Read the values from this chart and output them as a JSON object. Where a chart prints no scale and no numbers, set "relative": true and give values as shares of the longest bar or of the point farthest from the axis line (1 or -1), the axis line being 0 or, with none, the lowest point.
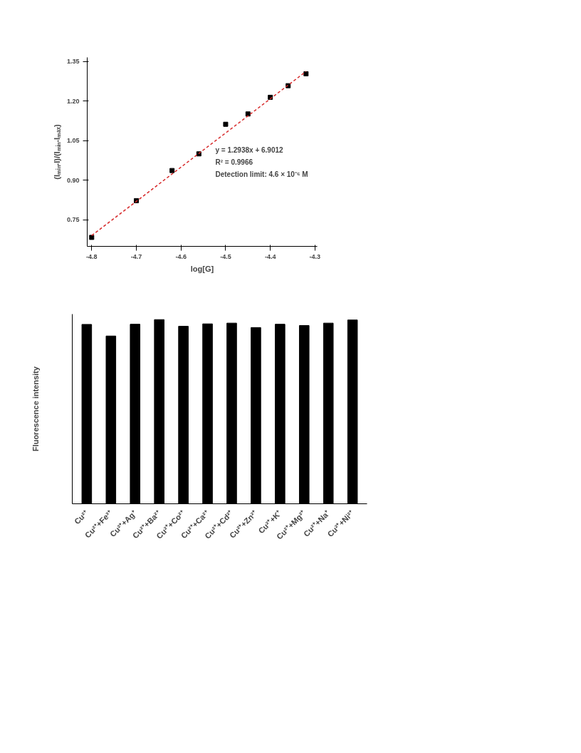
{
  "chart_data": [
    {
      "type": "scatter",
      "xlabel": "log[G]",
      "ylabel": "(Iₘᵢₙ-I)/(Iₘᵢₙ-Iₘₐₓ)",
      "xlim": [
        -4.81,
        -4.295
      ],
      "ylim": [
        0.65,
        1.365
      ],
      "xticks": [
        -4.8,
        -4.7,
        -4.6,
        -4.5,
        -4.4,
        -4.3
      ],
      "yticks": [
        0.75,
        {
          "value": 0.9,
          "label": "0.90"
        },
        1.05,
        {
          "value": 1.2,
          "label": "1.20"
        },
        1.35
      ],
      "annotations": [
        "y = 1.2938x + 6.9012",
        "R² = 0.9966",
        "Detection limit: 4.6 × 10⁻⁶ M"
      ],
      "series": [
        {
          "type": "scatter",
          "marker": "square",
          "color": "#000000",
          "x": [
            -4.8,
            -4.7,
            -4.62,
            -4.56,
            -4.5,
            -4.45,
            -4.4,
            -4.36,
            -4.32
          ],
          "values": [
            0.684,
            0.823,
            0.937,
            1.0,
            1.112,
            1.151,
            1.214,
            1.258,
            1.303
          ]
        },
        {
          "type": "line",
          "color": "#d62728",
          "line_style": "dashed",
          "x": [
            -4.8,
            -4.32
          ],
          "values": [
            0.691,
            1.312
          ]
        }
      ]
    },
    {
      "type": "bar",
      "relative": true,
      "ylabel": "Fluorescence intensity",
      "color": "#000000",
      "categories": [
        "Cu²⁺",
        "Cu²⁺+Fe³⁺",
        "Cu²⁺+Ag⁺",
        "Cu²⁺+Ba²⁺",
        "Cu²⁺+Co²⁺",
        "Cu²⁺+Ca²⁺",
        "Cu²⁺+Cd²⁺",
        "Cu²⁺+Zn²⁺",
        "Cu²⁺+K⁺",
        "Cu²⁺+Mg²⁺",
        "Cu²⁺+Na⁺",
        "Cu²⁺+Ni²⁺"
      ],
      "values": [
        0.974,
        0.911,
        0.975,
        1.0,
        0.964,
        0.977,
        0.981,
        0.957,
        0.975,
        0.968,
        0.981,
        0.998
      ]
    }
  ]
}
